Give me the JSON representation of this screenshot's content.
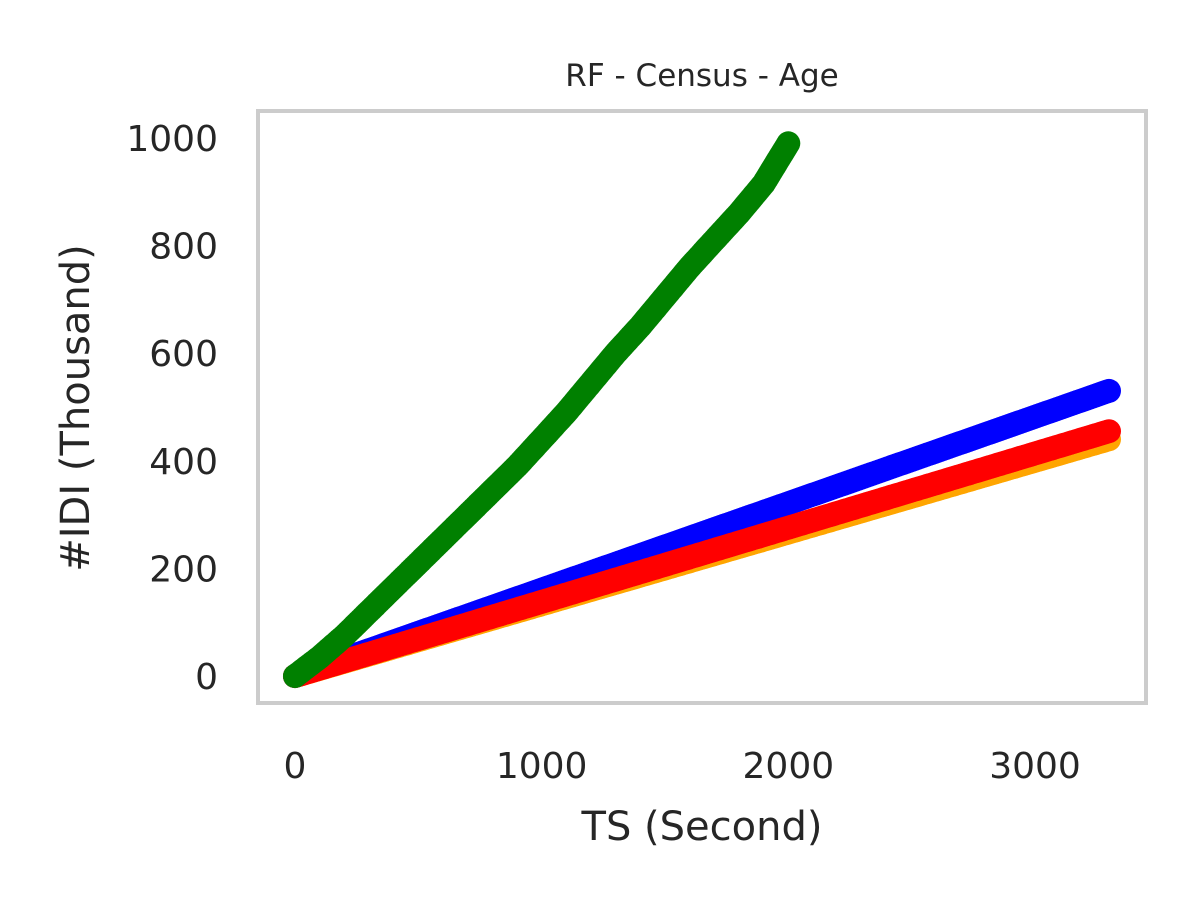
{
  "chart_data": {
    "type": "scatter",
    "title": "RF - Census - Age",
    "xlabel": "TS (Second)",
    "ylabel": "#IDI (Thousand)",
    "xlim": [
      -150,
      3450
    ],
    "ylim": [
      -50,
      1050
    ],
    "xticks": [
      0,
      1000,
      2000,
      3000
    ],
    "yticks": [
      0,
      200,
      400,
      600,
      800,
      1000
    ],
    "xtick_labels": [
      "0",
      "1000",
      "2000",
      "3000"
    ],
    "ytick_labels": [
      "0",
      "200",
      "400",
      "600",
      "800",
      "1000"
    ],
    "grid": false,
    "series": [
      {
        "color": "#ffa500",
        "x": [
          0,
          3300
        ],
        "y": [
          0,
          440
        ]
      },
      {
        "color": "#0000ff",
        "x": [
          0,
          3300
        ],
        "y": [
          0,
          530
        ]
      },
      {
        "color": "#ff0000",
        "x": [
          0,
          3300
        ],
        "y": [
          0,
          455
        ]
      },
      {
        "color": "#008000",
        "x": [
          0,
          100,
          200,
          300,
          400,
          500,
          600,
          700,
          800,
          900,
          1000,
          1100,
          1200,
          1300,
          1400,
          1500,
          1600,
          1700,
          1800,
          1900,
          2000
        ],
        "y": [
          0,
          35,
          75,
          120,
          165,
          210,
          255,
          300,
          345,
          390,
          440,
          490,
          545,
          600,
          650,
          705,
          760,
          810,
          860,
          915,
          990
        ]
      }
    ]
  }
}
